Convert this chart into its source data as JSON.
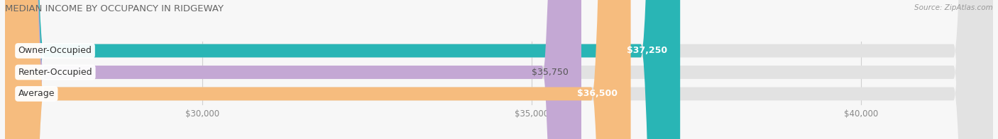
{
  "title": "MEDIAN INCOME BY OCCUPANCY IN RIDGEWAY",
  "source": "Source: ZipAtlas.com",
  "categories": [
    "Owner-Occupied",
    "Renter-Occupied",
    "Average"
  ],
  "values": [
    37250,
    35750,
    36500
  ],
  "bar_colors": [
    "#29b5b5",
    "#c4a8d4",
    "#f6bc7e"
  ],
  "bar_labels": [
    "$37,250",
    "$35,750",
    "$36,500"
  ],
  "label_text_colors": [
    "#ffffff",
    "#555555",
    "#ffffff"
  ],
  "xlim_min": 27000,
  "xlim_max": 42000,
  "xticks": [
    30000,
    35000,
    40000
  ],
  "xtick_labels": [
    "$30,000",
    "$35,000",
    "$40,000"
  ],
  "background_color": "#f7f7f7",
  "bar_background_color": "#e2e2e2",
  "figsize": [
    14.06,
    1.97
  ],
  "dpi": 100
}
